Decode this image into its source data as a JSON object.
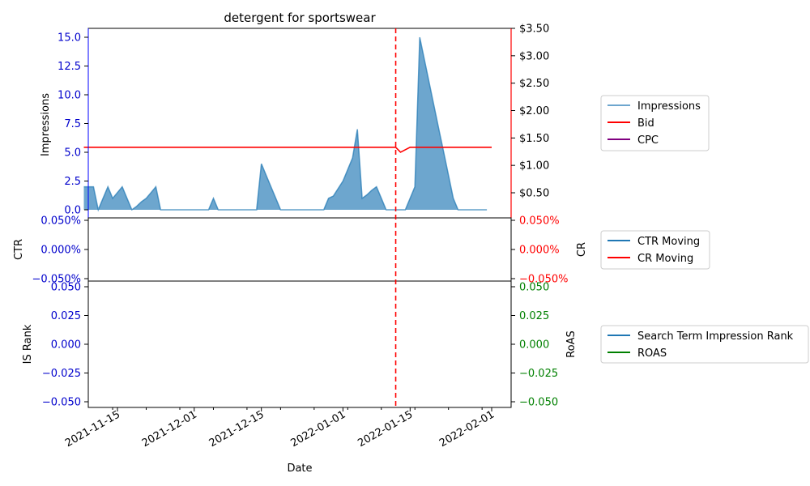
{
  "chart_data": [
    {
      "type": "area",
      "title": "detergent for sportswear",
      "xlabel": "",
      "ylabel_left": "Impressions",
      "ylim_left": [
        0,
        15
      ],
      "left_ticks": [
        "0.0",
        "2.5",
        "5.0",
        "7.5",
        "10.0",
        "12.5",
        "15.0"
      ],
      "right_ticks": [
        "$0.50",
        "$1.00",
        "$1.50",
        "$2.00",
        "$2.50",
        "$3.00",
        "$3.50"
      ],
      "ylim_right": [
        0.5,
        3.5
      ],
      "legend": [
        "Impressions",
        "Bid",
        "CPC"
      ],
      "legend_placement": "right",
      "colors": {
        "impressions": "#1f77b4",
        "bid": "#ff0000",
        "cpc": "#800080",
        "marker": "#d62728"
      },
      "series": [
        {
          "name": "Impressions",
          "x": [
            "2021-11-08",
            "2021-11-09",
            "2021-11-10",
            "2021-11-11",
            "2021-11-12",
            "2021-11-13",
            "2021-11-14",
            "2021-11-15",
            "2021-11-16",
            "2021-11-17",
            "2021-11-18",
            "2021-11-19",
            "2021-11-20",
            "2021-11-21",
            "2021-11-22",
            "2021-11-23",
            "2021-11-24",
            "2021-11-25",
            "2021-11-26",
            "2021-11-27",
            "2021-11-28",
            "2021-11-29",
            "2021-11-30",
            "2021-12-01",
            "2021-12-02",
            "2021-12-03",
            "2021-12-04",
            "2021-12-05",
            "2021-12-06",
            "2021-12-07",
            "2021-12-08",
            "2021-12-09",
            "2021-12-10",
            "2021-12-11",
            "2021-12-12",
            "2021-12-13",
            "2021-12-14",
            "2021-12-15",
            "2021-12-16",
            "2021-12-17",
            "2021-12-18",
            "2021-12-19",
            "2021-12-20",
            "2021-12-21",
            "2021-12-22",
            "2021-12-23",
            "2021-12-24",
            "2021-12-25",
            "2021-12-26",
            "2021-12-27",
            "2021-12-28",
            "2021-12-29",
            "2021-12-30",
            "2022-01-01",
            "2022-01-02",
            "2022-01-03",
            "2022-01-04",
            "2022-01-05",
            "2022-01-06",
            "2022-01-07",
            "2022-01-08",
            "2022-01-09",
            "2022-01-10",
            "2022-01-11",
            "2022-01-12",
            "2022-01-13",
            "2022-01-14",
            "2022-01-16",
            "2022-01-17",
            "2022-01-18",
            "2022-01-19",
            "2022-01-20",
            "2022-01-21",
            "2022-01-22",
            "2022-01-23",
            "2022-01-24",
            "2022-01-25",
            "2022-01-26",
            "2022-01-27",
            "2022-01-28",
            "2022-01-29",
            "2022-01-30",
            "2022-01-31"
          ],
          "y": [
            2,
            2,
            2,
            0,
            1,
            2,
            1,
            1.5,
            2,
            1,
            0,
            0.3,
            0.7,
            1,
            1.5,
            2,
            0,
            0,
            0,
            0,
            0,
            0,
            0,
            0,
            0,
            0,
            0,
            1,
            0,
            0,
            0,
            0,
            0,
            0,
            0,
            0,
            0,
            4,
            3,
            2,
            1,
            0,
            0,
            0,
            0,
            0,
            0,
            0,
            0,
            0,
            0,
            1,
            1.2,
            2.5,
            3.5,
            4.5,
            7,
            1,
            1.3,
            1.7,
            2,
            1,
            0,
            0,
            0,
            0,
            0,
            2,
            15,
            13,
            11,
            9,
            7,
            5,
            3,
            1,
            0,
            0,
            0,
            0,
            0,
            0,
            0
          ]
        },
        {
          "name": "Bid",
          "x": [
            "2021-11-08",
            "2022-01-11",
            "2022-01-12",
            "2022-01-13",
            "2022-01-15",
            "2022-02-01"
          ],
          "y": [
            1.33,
            1.33,
            1.33,
            1.24,
            1.33,
            1.33
          ]
        },
        {
          "name": "CPC",
          "x": [],
          "y": []
        }
      ],
      "marker_date": "2022-01-12"
    },
    {
      "type": "line",
      "ylabel_left": "CTR",
      "ylabel_right": "CR",
      "left_ticks": [
        "0.050%",
        "0.000%",
        "−0.050%"
      ],
      "right_ticks": [
        "0.050%",
        "0.000%",
        "−0.050%"
      ],
      "legend": [
        "CTR Moving",
        "CR Moving"
      ],
      "colors": {
        "ctr": "#1f77b4",
        "cr": "#ff0000"
      },
      "series": [
        {
          "name": "CTR Moving",
          "x": [],
          "y": []
        },
        {
          "name": "CR Moving",
          "x": [],
          "y": []
        }
      ]
    },
    {
      "type": "line",
      "xlabel": "Date",
      "ylabel_left": "IS Rank",
      "ylabel_right": "RoAS",
      "left_ticks": [
        "0.050",
        "0.025",
        "0.000",
        "−0.025",
        "−0.050"
      ],
      "right_ticks": [
        "0.050",
        "0.025",
        "0.000",
        "−0.025",
        "−0.050"
      ],
      "x_ticks": [
        "2021-11-15",
        "2021-12-01",
        "2021-12-15",
        "2022-01-01",
        "2022-01-15",
        "2022-02-01"
      ],
      "legend": [
        "Search Term Impression Rank",
        "ROAS"
      ],
      "colors": {
        "rank": "#1f77b4",
        "roas": "#008000"
      },
      "series": [
        {
          "name": "Search Term Impression Rank",
          "x": [],
          "y": []
        },
        {
          "name": "ROAS",
          "x": [],
          "y": []
        }
      ]
    }
  ]
}
